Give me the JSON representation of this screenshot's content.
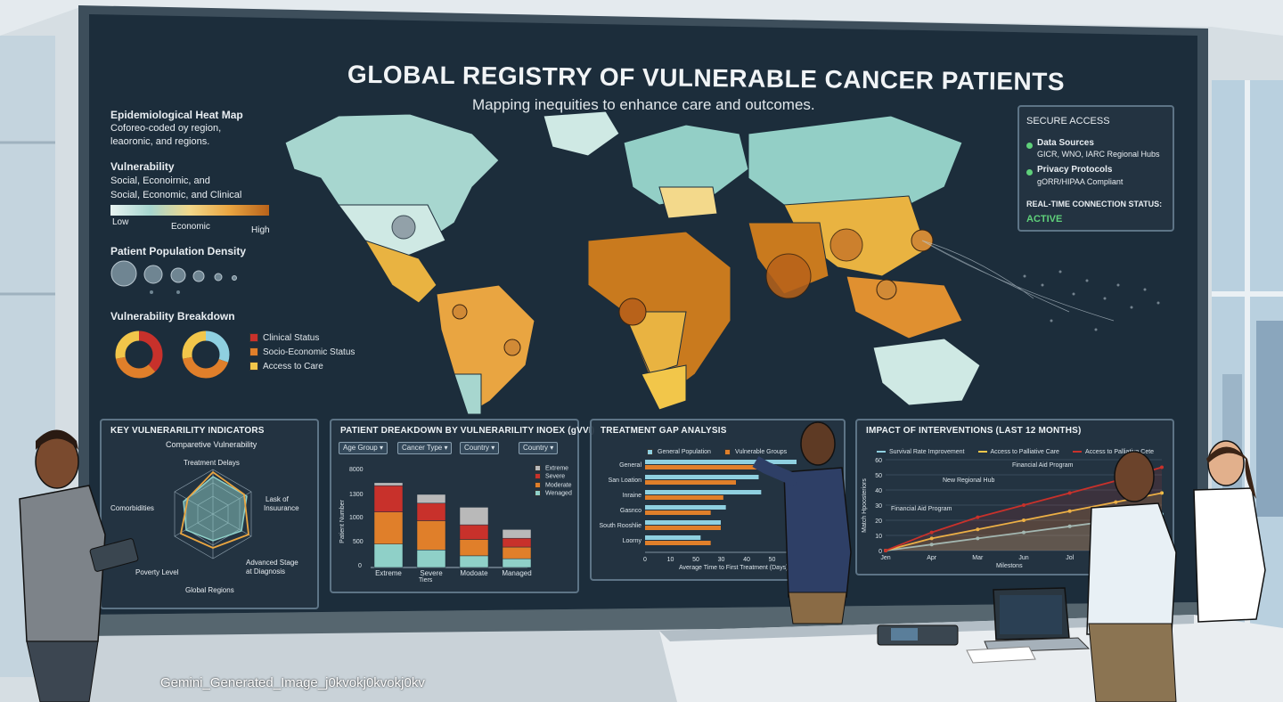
{
  "title": "GLOBAL REGISTRY OF VULNERABLE CANCER PATIENTS",
  "subtitle": "Mapping inequities to enhance care and outcomes.",
  "left_legend": {
    "heatmap_title": "Epidemiological Heat Map",
    "heatmap_desc_1": "Coforeo-coded oy region,",
    "heatmap_desc_2": "leaoronic, and regions.",
    "vuln_title": "Vulnerability",
    "vuln_desc_1": "Social, Econoirnic, and",
    "vuln_desc_2": "Social, Economic, and Clinical",
    "scale_low": "Low",
    "scale_mid": "Economic",
    "scale_high": "High",
    "density_title": "Patient Population Density",
    "breakdown_title": "Vulnerability Breakdown",
    "breakdown_items": [
      {
        "label": "Clinical Status",
        "color": "#c8312b"
      },
      {
        "label": "Socio-Economic Status",
        "color": "#e07f2a"
      },
      {
        "label": "Access to Care",
        "color": "#f2c64a"
      }
    ]
  },
  "secure_access": {
    "title": "SECURE ACCESS",
    "items": [
      {
        "label": "Data Sources",
        "detail": "GICR, WNO, IARC Regional Hubs"
      },
      {
        "label": "Privacy Protocols",
        "detail": "gORR/HIPAA Compliant"
      }
    ],
    "status_label": "REAL-TIME CONNECTION STATUS:",
    "status_value": "ACTIVE"
  },
  "panel_indicators": {
    "title": "KEY VULNERARILITY INDICATORS",
    "subtitle": "Comparetive Vulnerability",
    "axes": [
      "Treatment Delays",
      "Lask of Insuurance",
      "Advanced Stage at Diagnosis",
      "Global Regions",
      "Poverty Level",
      "Comorbidities"
    ],
    "axis_lines": [
      [
        "Treatment Delays"
      ],
      [
        "Lask of",
        "Insuurance"
      ],
      [
        "Advanced Stage",
        "at Diagnosis"
      ],
      [
        "Global Regions"
      ],
      [
        "Poverty Level"
      ],
      [
        "Comorbidities"
      ]
    ]
  },
  "panel_breakdown": {
    "title": "PATIENT DREAKDOWN BY VULNERARILITY INOEX (gVVI)",
    "filters": [
      "Age Group",
      "Cancer Type",
      "Country",
      "Country"
    ],
    "ylabel": "Patient Number",
    "xlabel": "Tiers",
    "yticks": [
      "0",
      "500",
      "1000",
      "1300",
      "8000"
    ],
    "legend": [
      {
        "name": "Extreme",
        "color": "#b9b9b9"
      },
      {
        "name": "Severe",
        "color": "#c8312b"
      },
      {
        "name": "Moderate",
        "color": "#e07f2a"
      },
      {
        "name": "Wenaged",
        "color": "#8fd0c8"
      }
    ]
  },
  "panel_gap": {
    "title": "TREATMENT GAP ANALYSIS",
    "legend": [
      {
        "name": "General Population",
        "color": "#8fd0e0"
      },
      {
        "name": "Vulnerable Groups",
        "color": "#e07f2a"
      }
    ],
    "xlabel": "Average Time to First Treatment (Days)",
    "xticks": [
      "0",
      "10",
      "50",
      "30",
      "40",
      "50",
      "60"
    ]
  },
  "panel_impact": {
    "title": "IMPACT OF INTERVENTIONS (LAST 12 MONTHS)",
    "legend": [
      {
        "name": "Survival Rate Improvement",
        "color": "#8fd0e0"
      },
      {
        "name": "Access to Palliative Care",
        "color": "#f2c64a"
      },
      {
        "name": "Access to Palliative Cete",
        "color": "#c8312b"
      }
    ],
    "ylabel": "Match Hpoosteriors",
    "xlabel": "Milestons",
    "yticks": [
      "0",
      "10",
      "20",
      "30",
      "40",
      "50",
      "60"
    ],
    "annotations": [
      "Financial Aid Program",
      "New Regional Hub",
      "Financial Aid Program"
    ]
  },
  "watermark": "Gemini_Generated_Image_j0kvokj0kvokj0kv",
  "chart_data": [
    {
      "type": "bar",
      "title": "PATIENT DREAKDOWN BY VULNERARILITY INOEX (gVVI)",
      "categories": [
        "Extreme",
        "Severe",
        "Modoate",
        "Managed"
      ],
      "xlabel": "Tiers",
      "ylabel": "Patient Number",
      "series": [
        {
          "name": "Wenaged",
          "values": [
            400,
            300,
            200,
            150
          ]
        },
        {
          "name": "Moderate",
          "values": [
            550,
            500,
            280,
            200
          ]
        },
        {
          "name": "Severe",
          "values": [
            450,
            300,
            250,
            150
          ]
        },
        {
          "name": "Extreme",
          "values": [
            50,
            150,
            300,
            150
          ]
        }
      ]
    },
    {
      "type": "bar",
      "title": "TREATMENT GAP ANALYSIS",
      "categories": [
        "General",
        "San Loation",
        "Inraine",
        "Gasnco",
        "South Rooshlie",
        "Loorny"
      ],
      "xlabel": "Average Time to First Treatment (Days)",
      "series": [
        {
          "name": "General Population",
          "values": [
            60,
            45,
            46,
            32,
            30,
            22
          ]
        },
        {
          "name": "Vulnerable Groups",
          "values": [
            52,
            36,
            31,
            26,
            30,
            26
          ]
        }
      ]
    },
    {
      "type": "line",
      "title": "IMPACT OF INTERVENTIONS (LAST 12 MONTHS)",
      "categories": [
        "Jen",
        "Apr",
        "Mar",
        "Jun",
        "Jol",
        "Aug",
        "Sep"
      ],
      "xlabel": "Milestons",
      "ylabel": "Match Hpoosteriors",
      "ylim": [
        0,
        60
      ],
      "series": [
        {
          "name": "Survival Rate Improvement",
          "values": [
            0,
            4,
            8,
            12,
            16,
            20,
            24
          ]
        },
        {
          "name": "Access to Palliative Care",
          "values": [
            0,
            8,
            14,
            20,
            26,
            32,
            38
          ]
        },
        {
          "name": "Access to Palliative Cete",
          "values": [
            0,
            12,
            22,
            30,
            38,
            46,
            55
          ]
        }
      ]
    }
  ]
}
